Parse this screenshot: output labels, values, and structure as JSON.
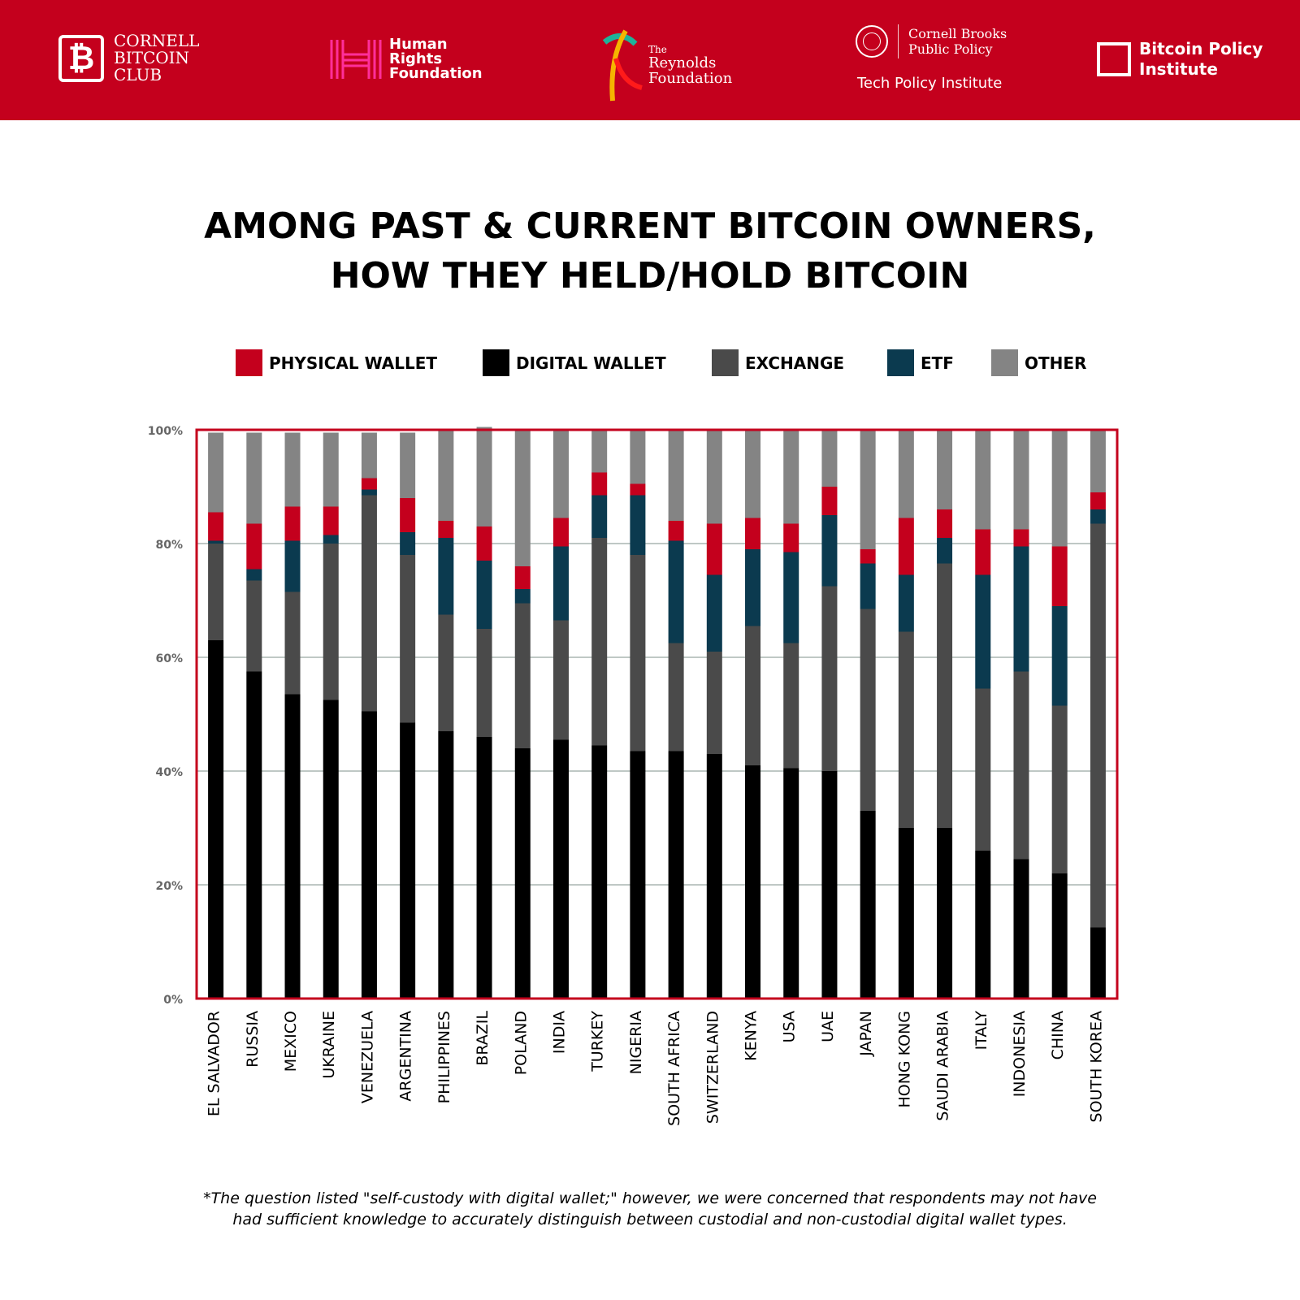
{
  "header": {
    "logos": {
      "cornell_bitcoin_club": [
        "CORNELL",
        "BITCOIN",
        "CLUB"
      ],
      "human_rights_foundation": [
        "Human",
        "Rights",
        "Foundation"
      ],
      "reynolds_foundation": [
        "The",
        "Reynolds",
        "Foundation"
      ],
      "cornell_brooks": [
        "Cornell Brooks",
        "Public Policy"
      ],
      "tech_policy_institute": "Tech Policy Institute",
      "bitcoin_policy_institute": [
        "Bitcoin Policy",
        "Institute"
      ]
    },
    "colors": {
      "background": "#c4001d",
      "foreground": "#ffffff"
    }
  },
  "title": [
    "AMONG PAST & CURRENT BITCOIN OWNERS,",
    "HOW THEY HELD/HOLD BITCOIN"
  ],
  "footnote": [
    "*The question listed \"self-custody with digital wallet;\" however, we were concerned that respondents may not have",
    "had sufficient knowledge to accurately distinguish between custodial and non-custodial digital wallet types."
  ],
  "chart_data": {
    "type": "bar",
    "stacked": true,
    "title": "AMONG PAST & CURRENT BITCOIN OWNERS, HOW THEY HELD/HOLD BITCOIN",
    "xlabel": "",
    "ylabel": "",
    "ylim": [
      0,
      100
    ],
    "yticks": [
      "0%",
      "20%",
      "40%",
      "60%",
      "80%",
      "100%"
    ],
    "grid": true,
    "legend_position": "top",
    "categories": [
      "EL SALVADOR",
      "RUSSIA",
      "MEXICO",
      "UKRAINE",
      "VENEZUELA",
      "ARGENTINA",
      "PHILIPPINES",
      "BRAZIL",
      "POLAND",
      "INDIA",
      "TURKEY",
      "NIGERIA",
      "SOUTH AFRICA",
      "SWITZERLAND",
      "KENYA",
      "USA",
      "UAE",
      "JAPAN",
      "HONG KONG",
      "SAUDI ARABIA",
      "ITALY",
      "INDONESIA",
      "CHINA",
      "SOUTH KOREA"
    ],
    "series": [
      {
        "name": "DIGITAL WALLET",
        "color": "#000000",
        "values": [
          63,
          57.5,
          53.5,
          52.5,
          50.5,
          48.5,
          47,
          46,
          44,
          45.5,
          44.5,
          43.5,
          43.5,
          43,
          41,
          40.5,
          40,
          33,
          30,
          30,
          26,
          24.5,
          22,
          12.5
        ]
      },
      {
        "name": "EXCHANGE",
        "color": "#4a4a4a",
        "values": [
          17,
          16,
          18,
          27.5,
          38,
          29.5,
          20.5,
          19,
          25.5,
          21,
          36.5,
          34.5,
          19,
          18,
          24.5,
          22,
          32.5,
          35.5,
          34.5,
          46.5,
          28.5,
          33,
          29.5,
          71
        ]
      },
      {
        "name": "ETF",
        "color": "#0b3a4f",
        "values": [
          0.5,
          2,
          9,
          1.5,
          1,
          4,
          13.5,
          12,
          2.5,
          13,
          7.5,
          10.5,
          18,
          13.5,
          13.5,
          16,
          12.5,
          8,
          10,
          4.5,
          20,
          22,
          17.5,
          2.5
        ]
      },
      {
        "name": "PHYSICAL WALLET",
        "color": "#c4001d",
        "values": [
          5,
          8,
          6,
          5,
          2,
          6,
          3,
          6,
          4,
          5,
          4,
          2,
          3.5,
          9,
          5.5,
          5,
          5,
          2.5,
          10,
          5,
          8,
          3,
          10.5,
          3
        ]
      },
      {
        "name": "OTHER",
        "color": "#848484",
        "values": [
          14,
          16,
          13,
          13,
          8,
          11.5,
          16,
          17.5,
          24,
          15.5,
          7.5,
          9.5,
          16,
          16.5,
          15.5,
          16.5,
          10,
          21,
          15.5,
          14,
          17.5,
          17.5,
          20.5,
          11
        ]
      }
    ],
    "legend": [
      {
        "label": "PHYSICAL WALLET",
        "color": "#c4001d"
      },
      {
        "label": "DIGITAL WALLET",
        "color": "#000000"
      },
      {
        "label": "EXCHANGE",
        "color": "#4a4a4a"
      },
      {
        "label": "ETF",
        "color": "#0b3a4f"
      },
      {
        "label": "OTHER",
        "color": "#848484"
      }
    ],
    "frame_color": "#c4001d",
    "gridline_color": "#aab6b2",
    "tick_label_color": "#666666"
  }
}
